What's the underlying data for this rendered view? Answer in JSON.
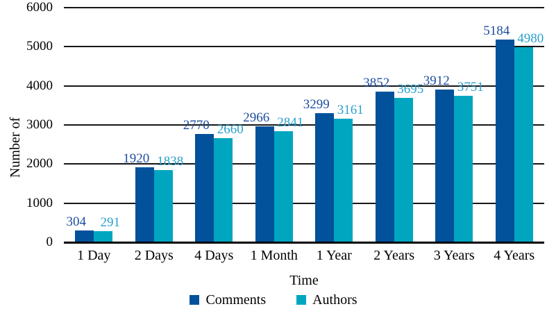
{
  "chart_data": {
    "type": "bar",
    "title": "",
    "xlabel": "Time",
    "ylabel": "Number of",
    "categories": [
      "1 Day",
      "2 Days",
      "4 Days",
      "1 Month",
      "1 Year",
      "2 Years",
      "3 Years",
      "4 Years"
    ],
    "series": [
      {
        "name": "Comments",
        "color": "#01519B",
        "label_color": "#1C4C9F",
        "values": [
          304,
          1920,
          2770,
          2966,
          3299,
          3852,
          3912,
          5184
        ]
      },
      {
        "name": "Authors",
        "color": "#00A6C0",
        "label_color": "#2BA0CE",
        "values": [
          291,
          1838,
          2660,
          2841,
          3161,
          3695,
          3751,
          4980
        ]
      }
    ],
    "ylim": [
      0,
      6000
    ],
    "ytick_step": 1000,
    "grid": true,
    "value_labels": true,
    "legend_position": "bottom",
    "axis_color": "#000000",
    "grid_color": "#161616"
  }
}
